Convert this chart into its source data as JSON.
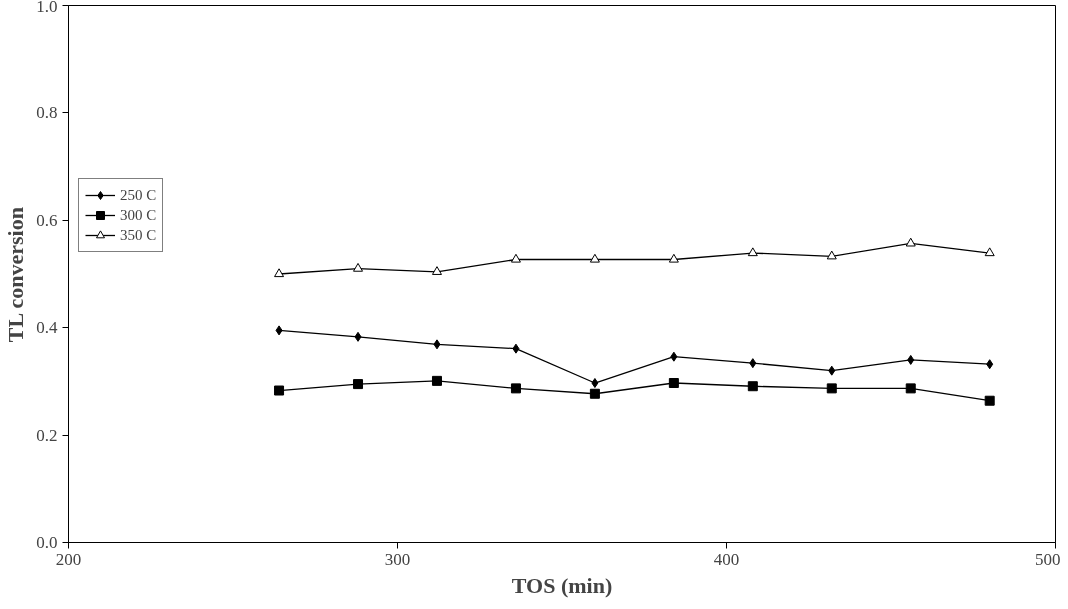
{
  "chart_data": {
    "type": "line",
    "xlabel": "TOS (min)",
    "ylabel": "TL conversion",
    "xlim": [
      200,
      500
    ],
    "xticks": [
      200,
      300,
      400,
      500
    ],
    "ylim": [
      0,
      1
    ],
    "yticks": [
      {
        "value": 0,
        "label": "0.0"
      },
      0.2,
      0.4,
      0.6,
      0.8,
      {
        "value": 1,
        "label": "1.0"
      }
    ],
    "grid": false,
    "legend": "left",
    "x": [
      264,
      288,
      312,
      336,
      360,
      384,
      408,
      432,
      456,
      480
    ],
    "series": [
      {
        "name": "250 C",
        "color": "#000000",
        "marker": "diamond",
        "values": [
          0.395,
          0.383,
          0.369,
          0.361,
          0.297,
          0.346,
          0.334,
          0.32,
          0.34,
          0.332
        ]
      },
      {
        "name": "300 C",
        "color": "#000000",
        "marker": "square",
        "values": [
          0.283,
          0.295,
          0.301,
          0.287,
          0.277,
          0.297,
          0.291,
          0.287,
          0.287,
          0.264
        ]
      },
      {
        "name": "350 C",
        "color": "#000000",
        "marker": "triangle",
        "values": [
          0.5,
          0.51,
          0.504,
          0.527,
          0.527,
          0.527,
          0.539,
          0.533,
          0.557,
          0.539
        ]
      }
    ]
  }
}
